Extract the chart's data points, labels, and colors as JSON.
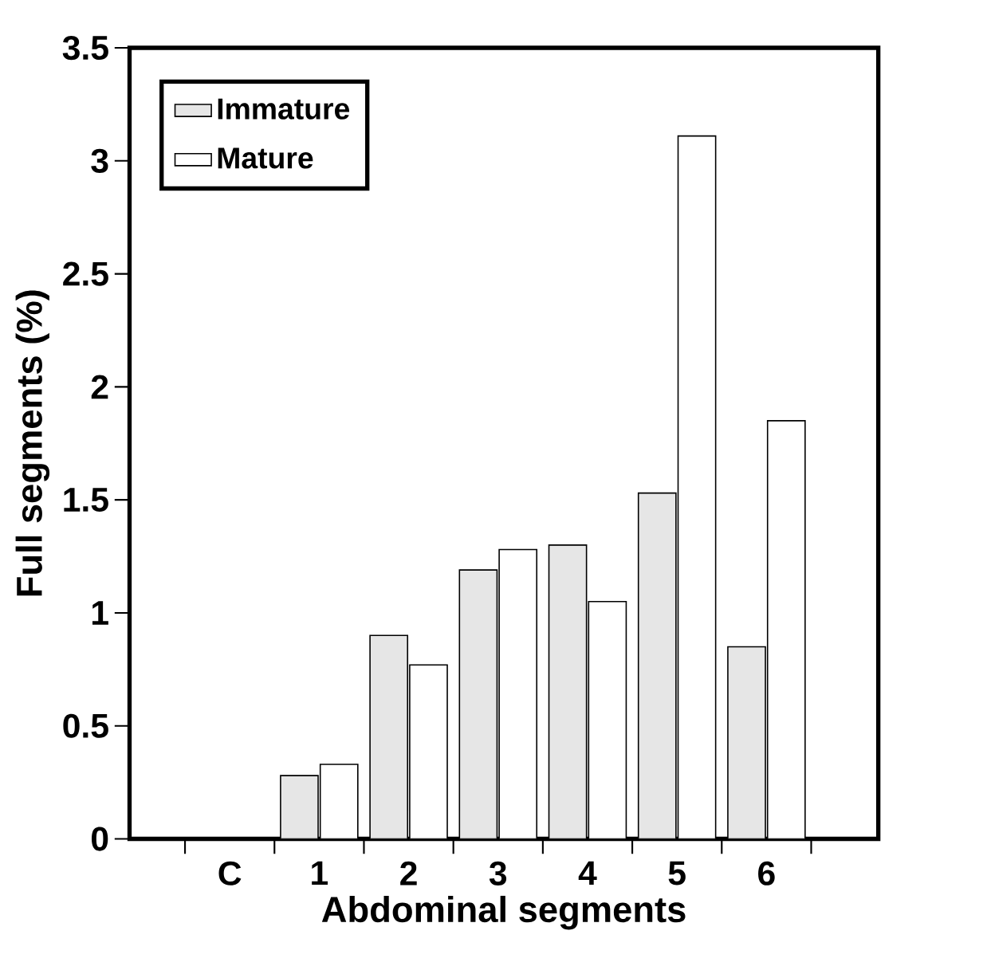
{
  "chart_data": {
    "type": "bar",
    "xlabel": "Abdominal segments",
    "ylabel": "Full segments (%)",
    "categories": [
      "C",
      "1",
      "2",
      "3",
      "4",
      "5",
      "6"
    ],
    "series": [
      {
        "name": "Immature",
        "color": "#e6e6e6",
        "values": [
          null,
          0.28,
          0.9,
          1.19,
          1.3,
          1.53,
          0.85
        ]
      },
      {
        "name": "Mature",
        "color": "#ffffff",
        "values": [
          null,
          0.33,
          0.77,
          1.28,
          1.05,
          3.11,
          1.85
        ]
      }
    ],
    "ylim": [
      0,
      3.5
    ],
    "yticks": [
      0,
      0.5,
      1,
      1.5,
      2,
      2.5,
      3,
      3.5
    ],
    "grid": false,
    "legend": "top left"
  }
}
